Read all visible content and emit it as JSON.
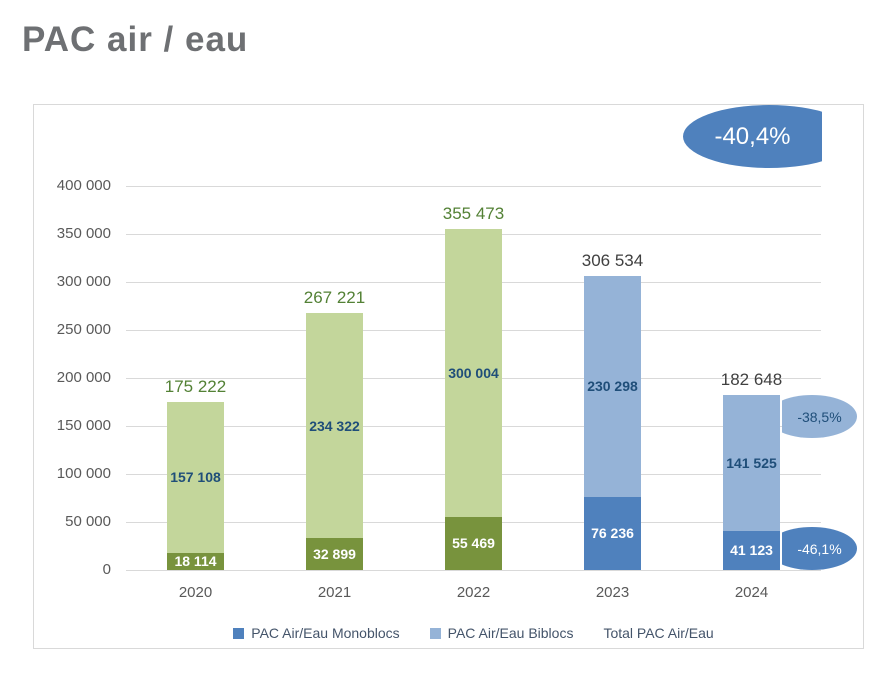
{
  "page": {
    "title": "PAC air / eau"
  },
  "badges": {
    "total_change": "-40,4%",
    "biblocs_change": "-38,5%",
    "monoblocs_change": "-46,1%"
  },
  "colors": {
    "monoblocs_green": "#78933d",
    "biblocs_green": "#c3d69b",
    "monoblocs_blue": "#4f81bd",
    "biblocs_blue": "#95b3d7",
    "badge_total_bg": "#4f81bd",
    "badge_biblocs_bg": "#95b3d7",
    "badge_monoblocs_bg": "#4f81bd",
    "inner_label_dark_blue": "#1f4e79",
    "inner_label_white": "#ffffff",
    "total_label_green": "#538135",
    "total_label_dark": "#404040",
    "grid": "#d9d9d9",
    "axis_text": "#595959",
    "legend_text": "#44546a",
    "title_text": "#6e7073"
  },
  "chart_data": {
    "type": "bar",
    "stacked": true,
    "grid": true,
    "legend_position": "bottom",
    "categories": [
      "2020",
      "2021",
      "2022",
      "2023",
      "2024"
    ],
    "series": [
      {
        "name": "PAC Air/Eau Monoblocs",
        "values": [
          18114,
          32899,
          55469,
          76236,
          41123
        ],
        "bar_colors": [
          "#78933d",
          "#78933d",
          "#78933d",
          "#4f81bd",
          "#4f81bd"
        ],
        "label_colors": [
          "#ffffff",
          "#ffffff",
          "#ffffff",
          "#ffffff",
          "#ffffff"
        ]
      },
      {
        "name": "PAC Air/Eau Biblocs",
        "values": [
          157108,
          234322,
          300004,
          230298,
          141525
        ],
        "bar_colors": [
          "#c3d69b",
          "#c3d69b",
          "#c3d69b",
          "#95b3d7",
          "#95b3d7"
        ],
        "label_colors": [
          "#1f4e79",
          "#1f4e79",
          "#1f4e79",
          "#1f4e79",
          "#1f4e79"
        ]
      }
    ],
    "totals": [
      175222,
      267221,
      355473,
      306534,
      182648
    ],
    "totals_colors": [
      "#538135",
      "#538135",
      "#538135",
      "#404040",
      "#404040"
    ],
    "total_label": "Total PAC Air/Eau",
    "ylim": [
      0,
      400000
    ],
    "ytick_step": 50000,
    "ytick_labels": [
      "0",
      "50 000",
      "100 000",
      "150 000",
      "200 000",
      "250 000",
      "300 000",
      "350 000",
      "400 000"
    ]
  }
}
